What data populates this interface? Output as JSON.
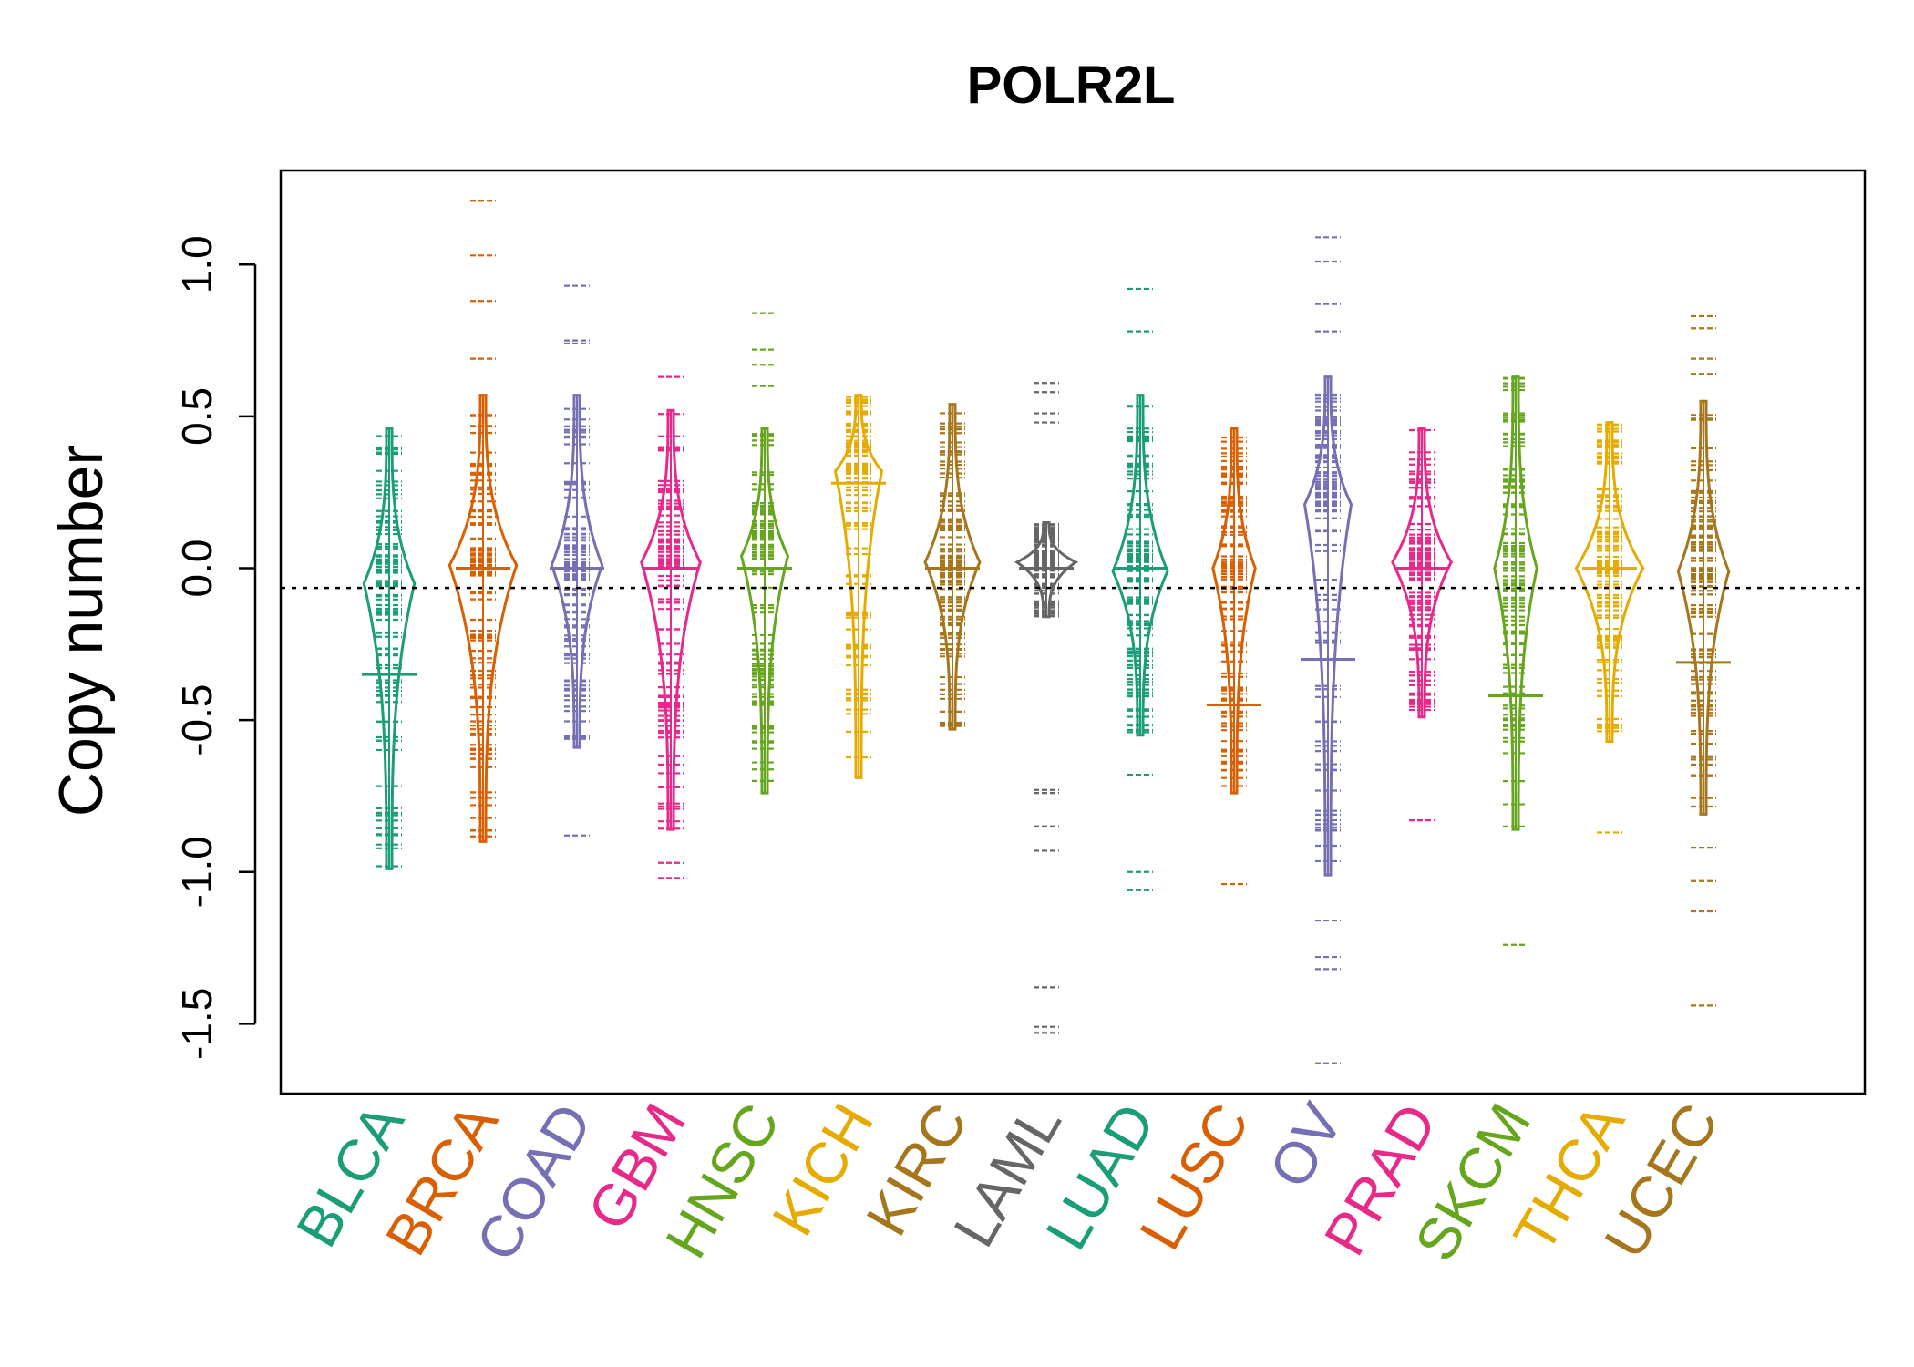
{
  "chart_data": {
    "type": "beanplot",
    "title": "POLR2L",
    "xlabel": "",
    "ylabel": "Copy number",
    "ylim": [
      -1.73,
      1.31
    ],
    "yticks": [
      -1.5,
      -1.0,
      -0.5,
      0.0,
      0.5,
      1.0
    ],
    "ytick_labels": [
      "-1.5",
      "-1.0",
      "-0.5",
      "0.0",
      "0.5",
      "1.0"
    ],
    "reference_line": -0.065,
    "categories": [
      {
        "name": "BLCA",
        "color": "#1B9E77",
        "min": -0.99,
        "max": 0.46,
        "mode": -0.05,
        "median": -0.35,
        "width": 0.55,
        "outliers": []
      },
      {
        "name": "BRCA",
        "color": "#D95F02",
        "min": -0.9,
        "max": 0.57,
        "mode": 0.01,
        "median": 0.0,
        "width": 0.75,
        "outliers": [
          1.21,
          1.03,
          0.88,
          0.69
        ]
      },
      {
        "name": "COAD",
        "color": "#7570B3",
        "min": -0.59,
        "max": 0.57,
        "mode": 0.01,
        "median": 0.0,
        "width": 0.55,
        "outliers": [
          0.93,
          0.75,
          0.74,
          -0.88
        ]
      },
      {
        "name": "GBM",
        "color": "#E7298A",
        "min": -0.86,
        "max": 0.52,
        "mode": 0.02,
        "median": 0.0,
        "width": 0.65,
        "outliers": [
          0.63,
          -0.97,
          -1.02
        ]
      },
      {
        "name": "HNSC",
        "color": "#66A61E",
        "min": -0.74,
        "max": 0.46,
        "mode": 0.04,
        "median": 0.0,
        "width": 0.5,
        "outliers": [
          0.84,
          0.72,
          0.67,
          0.6
        ]
      },
      {
        "name": "KICH",
        "color": "#E6AB02",
        "min": -0.69,
        "max": 0.57,
        "mode": 0.32,
        "median": 0.28,
        "width": 0.5,
        "outliers": []
      },
      {
        "name": "KIRC",
        "color": "#A6761D",
        "min": -0.53,
        "max": 0.54,
        "mode": 0.02,
        "median": 0.0,
        "width": 0.6,
        "outliers": []
      },
      {
        "name": "LAML",
        "color": "#666666",
        "min": -0.16,
        "max": 0.15,
        "mode": 0.02,
        "median": 0.0,
        "width": 0.65,
        "outliers": [
          0.61,
          0.58,
          0.51,
          0.48,
          -0.73,
          -0.74,
          -0.85,
          -0.93,
          -1.38,
          -1.51,
          -1.53
        ]
      },
      {
        "name": "LUAD",
        "color": "#1B9E77",
        "min": -0.55,
        "max": 0.57,
        "mode": -0.01,
        "median": 0.0,
        "width": 0.6,
        "outliers": [
          0.92,
          0.78,
          -0.68,
          -1.0,
          -1.06
        ]
      },
      {
        "name": "LUSC",
        "color": "#D95F02",
        "min": -0.74,
        "max": 0.46,
        "mode": 0.0,
        "median": -0.45,
        "width": 0.45,
        "outliers": [
          -1.04
        ]
      },
      {
        "name": "OV",
        "color": "#7570B3",
        "min": -1.01,
        "max": 0.63,
        "mode": 0.21,
        "median": -0.3,
        "width": 0.5,
        "outliers": [
          1.09,
          1.01,
          0.87,
          0.78,
          -1.16,
          -1.28,
          -1.32,
          -1.63
        ]
      },
      {
        "name": "PRAD",
        "color": "#E7298A",
        "min": -0.49,
        "max": 0.46,
        "mode": 0.02,
        "median": 0.0,
        "width": 0.65,
        "outliers": [
          -0.83
        ]
      },
      {
        "name": "SKCM",
        "color": "#66A61E",
        "min": -0.86,
        "max": 0.63,
        "mode": 0.0,
        "median": -0.42,
        "width": 0.45,
        "outliers": [
          -1.24
        ]
      },
      {
        "name": "THCA",
        "color": "#E6AB02",
        "min": -0.57,
        "max": 0.48,
        "mode": 0.0,
        "median": 0.0,
        "width": 0.75,
        "outliers": [
          -0.87
        ]
      },
      {
        "name": "UCEC",
        "color": "#A6761D",
        "min": -0.81,
        "max": 0.55,
        "mode": -0.01,
        "median": -0.31,
        "width": 0.55,
        "outliers": [
          0.83,
          0.79,
          0.69,
          0.64,
          -0.92,
          -1.03,
          -1.13,
          -1.44
        ]
      }
    ]
  }
}
